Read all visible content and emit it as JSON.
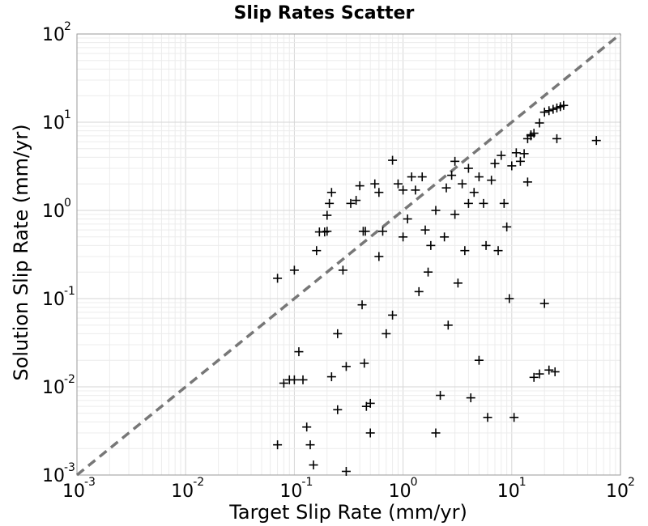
{
  "chart_data": {
    "type": "scatter",
    "title": "Slip Rates Scatter",
    "xlabel": "Target Slip Rate (mm/yr)",
    "ylabel": "Solution Slip Rate (mm/yr)",
    "xscale": "log",
    "yscale": "log",
    "xlim": [
      0.001,
      100
    ],
    "ylim": [
      0.001,
      100
    ],
    "xticks": [
      {
        "base": "10",
        "exp": "-3"
      },
      {
        "base": "10",
        "exp": "-2"
      },
      {
        "base": "10",
        "exp": "-1"
      },
      {
        "base": "10",
        "exp": "0"
      },
      {
        "base": "10",
        "exp": "1"
      },
      {
        "base": "10",
        "exp": "2"
      }
    ],
    "yticks": [
      {
        "base": "10",
        "exp": "-3"
      },
      {
        "base": "10",
        "exp": "-2"
      },
      {
        "base": "10",
        "exp": "-1"
      },
      {
        "base": "10",
        "exp": "0"
      },
      {
        "base": "10",
        "exp": "1"
      },
      {
        "base": "10",
        "exp": "2"
      }
    ],
    "grid": true,
    "reference_line": {
      "style": "dashed",
      "color": "#777777",
      "x": [
        0.001,
        100
      ],
      "y": [
        0.001,
        100
      ]
    },
    "marker_color": "#000000",
    "marker": "plus",
    "series": [
      {
        "points": [
          [
            0.07,
            0.17
          ],
          [
            0.07,
            0.0022
          ],
          [
            0.08,
            0.011
          ],
          [
            0.09,
            0.012
          ],
          [
            0.1,
            0.012
          ],
          [
            0.1,
            0.21
          ],
          [
            0.11,
            0.025
          ],
          [
            0.12,
            0.012
          ],
          [
            0.13,
            0.0035
          ],
          [
            0.14,
            0.0022
          ],
          [
            0.15,
            0.0013
          ],
          [
            0.16,
            0.35
          ],
          [
            0.17,
            0.57
          ],
          [
            0.19,
            0.57
          ],
          [
            0.2,
            0.88
          ],
          [
            0.2,
            0.58
          ],
          [
            0.21,
            1.2
          ],
          [
            0.22,
            1.6
          ],
          [
            0.22,
            0.013
          ],
          [
            0.25,
            0.04
          ],
          [
            0.25,
            0.0055
          ],
          [
            0.28,
            0.21
          ],
          [
            0.3,
            0.017
          ],
          [
            0.3,
            0.0011
          ],
          [
            0.33,
            1.2
          ],
          [
            0.37,
            1.3
          ],
          [
            0.4,
            1.9
          ],
          [
            0.43,
            0.58
          ],
          [
            0.45,
            0.58
          ],
          [
            0.42,
            0.085
          ],
          [
            0.44,
            0.0185
          ],
          [
            0.46,
            0.006
          ],
          [
            0.5,
            0.003
          ],
          [
            0.5,
            0.0065
          ],
          [
            0.55,
            2.0
          ],
          [
            0.6,
            1.6
          ],
          [
            0.6,
            0.3
          ],
          [
            0.65,
            0.58
          ],
          [
            0.7,
            0.04
          ],
          [
            0.8,
            0.065
          ],
          [
            0.8,
            3.7
          ],
          [
            0.9,
            2.0
          ],
          [
            1.0,
            1.7
          ],
          [
            1.0,
            0.5
          ],
          [
            1.1,
            0.8
          ],
          [
            1.2,
            2.4
          ],
          [
            1.3,
            1.7
          ],
          [
            1.4,
            0.12
          ],
          [
            1.5,
            2.4
          ],
          [
            1.6,
            0.6
          ],
          [
            1.7,
            0.2
          ],
          [
            1.8,
            0.4
          ],
          [
            2.0,
            1.0
          ],
          [
            2.0,
            0.003
          ],
          [
            2.2,
            0.008
          ],
          [
            2.4,
            0.5
          ],
          [
            2.5,
            1.8
          ],
          [
            2.6,
            0.05
          ],
          [
            2.8,
            2.5
          ],
          [
            3.0,
            3.6
          ],
          [
            3.0,
            0.9
          ],
          [
            3.2,
            0.15
          ],
          [
            3.5,
            2.0
          ],
          [
            3.7,
            0.35
          ],
          [
            4.0,
            1.2
          ],
          [
            4.0,
            3.0
          ],
          [
            4.2,
            0.0075
          ],
          [
            4.5,
            1.6
          ],
          [
            5.0,
            2.4
          ],
          [
            5.0,
            0.02
          ],
          [
            5.5,
            1.2
          ],
          [
            5.8,
            0.4
          ],
          [
            6.0,
            0.0045
          ],
          [
            6.5,
            2.2
          ],
          [
            7.0,
            3.4
          ],
          [
            7.5,
            0.35
          ],
          [
            8.0,
            4.2
          ],
          [
            8.5,
            1.2
          ],
          [
            9.0,
            0.65
          ],
          [
            9.5,
            0.1
          ],
          [
            10.0,
            3.2
          ],
          [
            10.5,
            0.0045
          ],
          [
            11.0,
            4.5
          ],
          [
            12.0,
            3.6
          ],
          [
            13.0,
            4.4
          ],
          [
            14.0,
            2.1
          ],
          [
            15.0,
            7.0
          ],
          [
            16.0,
            7.5
          ],
          [
            18.0,
            9.8
          ],
          [
            20.0,
            13.0
          ],
          [
            22.0,
            13.5
          ],
          [
            24.0,
            14.0
          ],
          [
            26.0,
            14.5
          ],
          [
            28.0,
            15.0
          ],
          [
            30.0,
            15.5
          ],
          [
            26.0,
            6.5
          ],
          [
            22.0,
            0.0155
          ],
          [
            25.0,
            0.0148
          ],
          [
            20.0,
            0.088
          ],
          [
            18.0,
            0.014
          ],
          [
            16.0,
            0.0128
          ],
          [
            60.0,
            6.2
          ],
          [
            15.0,
            7.2
          ],
          [
            14.0,
            6.5
          ]
        ]
      }
    ]
  }
}
